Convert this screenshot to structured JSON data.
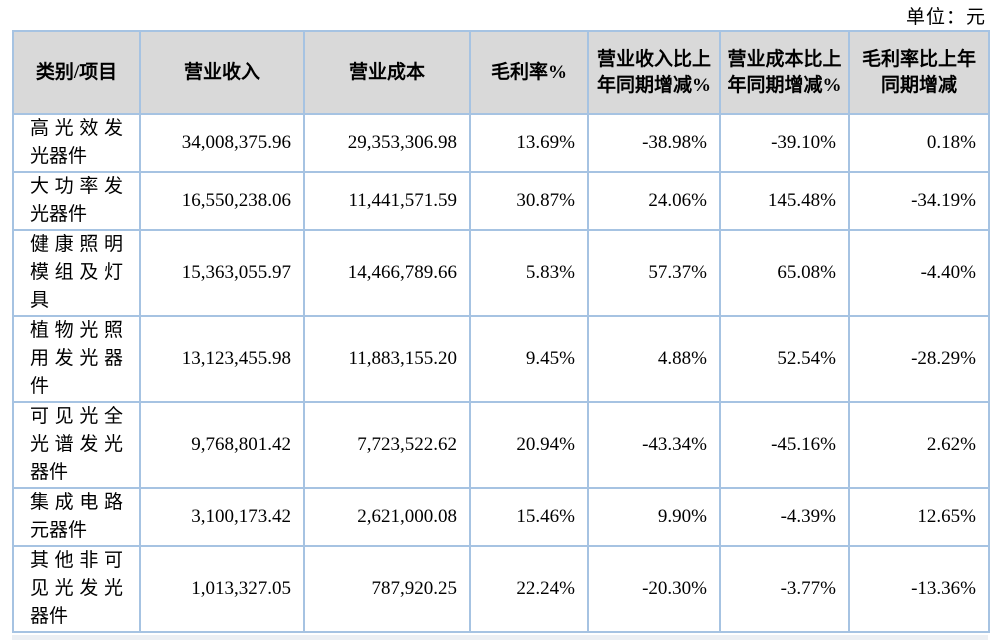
{
  "unit_label": "单位：元",
  "colors": {
    "border": "#a6c3e2",
    "header_bg": "#d9d9d9",
    "strip_bg": "#eceff3"
  },
  "table": {
    "headers": {
      "category": "类别/项目",
      "revenue": "营业收入",
      "cost": "营业成本",
      "margin": "毛利率%",
      "revenue_yoy": "营业收入比上年同期增减%",
      "cost_yoy": "营业成本比上年同期增减%",
      "margin_yoy": "毛利率比上年同期增减"
    },
    "rows": [
      {
        "category": "高光效发光器件",
        "revenue": "34,008,375.96",
        "cost": "29,353,306.98",
        "margin": "13.69%",
        "revenue_yoy": "-38.98%",
        "cost_yoy": "-39.10%",
        "margin_yoy": "0.18%"
      },
      {
        "category": "大功率发光器件",
        "revenue": "16,550,238.06",
        "cost": "11,441,571.59",
        "margin": "30.87%",
        "revenue_yoy": "24.06%",
        "cost_yoy": "145.48%",
        "margin_yoy": "-34.19%"
      },
      {
        "category": "健康照明模组及灯具",
        "revenue": "15,363,055.97",
        "cost": "14,466,789.66",
        "margin": "5.83%",
        "revenue_yoy": "57.37%",
        "cost_yoy": "65.08%",
        "margin_yoy": "-4.40%"
      },
      {
        "category": "植物光照用发光器件",
        "revenue": "13,123,455.98",
        "cost": "11,883,155.20",
        "margin": "9.45%",
        "revenue_yoy": "4.88%",
        "cost_yoy": "52.54%",
        "margin_yoy": "-28.29%"
      },
      {
        "category": "可见光全光谱发光器件",
        "revenue": "9,768,801.42",
        "cost": "7,723,522.62",
        "margin": "20.94%",
        "revenue_yoy": "-43.34%",
        "cost_yoy": "-45.16%",
        "margin_yoy": "2.62%"
      },
      {
        "category": "集成电路元器件",
        "revenue": "3,100,173.42",
        "cost": "2,621,000.08",
        "margin": "15.46%",
        "revenue_yoy": "9.90%",
        "cost_yoy": "-4.39%",
        "margin_yoy": "12.65%"
      },
      {
        "category": "其他非可见光发光器件",
        "revenue": "1,013,327.05",
        "cost": "787,920.25",
        "margin": "22.24%",
        "revenue_yoy": "-20.30%",
        "cost_yoy": "-3.77%",
        "margin_yoy": "-13.36%"
      }
    ]
  }
}
